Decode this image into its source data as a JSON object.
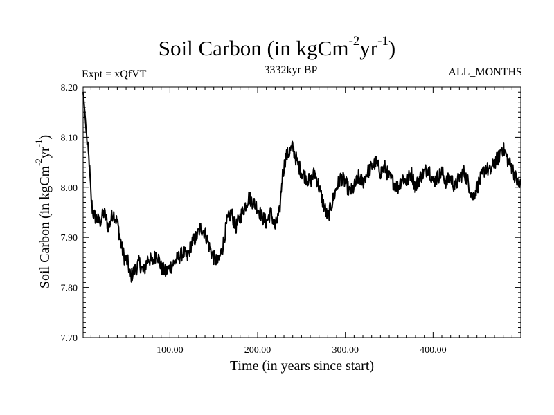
{
  "header": {
    "title_main": "Soil Carbon (in kgCm",
    "title_exp1": "-2",
    "title_mid": "yr",
    "title_exp2": "-1",
    "title_end": ")",
    "experiment": "Expt = xQfVT",
    "period": "3332kyr BP",
    "months": "ALL_MONTHS"
  },
  "axis_text": {
    "xlabel": "Time (in years since start)",
    "ylabel_main": "Soil Carbon (in kgCm",
    "ylabel_exp1": "-2",
    "ylabel_mid": "yr",
    "ylabel_exp2": "-1",
    "ylabel_end": ")"
  },
  "chart_data": {
    "type": "line",
    "title": "Soil Carbon (in kgCm-2yr-1)",
    "subtitle": "3332kyr BP",
    "xlabel": "Time (in years since start)",
    "ylabel": "Soil Carbon (in kgCm-2yr-1)",
    "xlim": [
      1,
      500
    ],
    "ylim": [
      7.7,
      8.2
    ],
    "x_ticks": [
      100,
      200,
      300,
      400
    ],
    "x_tick_labels": [
      "100.00",
      "200.00",
      "300.00",
      "400.00"
    ],
    "y_ticks": [
      7.7,
      7.8,
      7.9,
      8.0,
      8.1,
      8.2
    ],
    "y_tick_labels": [
      "7.70",
      "7.80",
      "7.90",
      "8.00",
      "8.10",
      "8.20"
    ],
    "grid": false,
    "line_color": "#000000",
    "series": [
      {
        "name": "Soil Carbon",
        "x": [
          1,
          3,
          5,
          8,
          10,
          12,
          15,
          20,
          25,
          30,
          35,
          40,
          45,
          48,
          52,
          55,
          58,
          62,
          65,
          70,
          75,
          80,
          85,
          90,
          95,
          100,
          105,
          110,
          115,
          120,
          125,
          130,
          135,
          140,
          145,
          150,
          155,
          160,
          165,
          170,
          175,
          180,
          185,
          190,
          195,
          200,
          205,
          210,
          215,
          220,
          225,
          228,
          232,
          236,
          240,
          245,
          250,
          255,
          260,
          265,
          270,
          273,
          276,
          280,
          285,
          290,
          295,
          300,
          305,
          310,
          315,
          320,
          325,
          330,
          335,
          340,
          345,
          350,
          355,
          360,
          365,
          370,
          375,
          380,
          385,
          390,
          395,
          400,
          405,
          410,
          415,
          420,
          425,
          430,
          435,
          440,
          445,
          450,
          455,
          460,
          465,
          470,
          475,
          478,
          482,
          486,
          490,
          494,
          498,
          500
        ],
        "values": [
          8.19,
          8.15,
          8.1,
          8.05,
          7.98,
          7.95,
          7.94,
          7.93,
          7.95,
          7.92,
          7.95,
          7.93,
          7.88,
          7.86,
          7.85,
          7.82,
          7.83,
          7.84,
          7.85,
          7.83,
          7.86,
          7.85,
          7.87,
          7.84,
          7.83,
          7.84,
          7.85,
          7.86,
          7.87,
          7.86,
          7.89,
          7.9,
          7.92,
          7.91,
          7.88,
          7.86,
          7.85,
          7.88,
          7.93,
          7.95,
          7.92,
          7.94,
          7.96,
          7.98,
          7.97,
          7.96,
          7.94,
          7.93,
          7.95,
          7.92,
          7.95,
          8.02,
          8.06,
          8.07,
          8.08,
          8.05,
          8.03,
          8.02,
          8.01,
          8.03,
          8.0,
          7.98,
          7.96,
          7.94,
          7.97,
          8.0,
          8.02,
          8.01,
          7.99,
          8.0,
          8.02,
          8.01,
          8.03,
          8.04,
          8.05,
          8.03,
          8.04,
          8.02,
          8.01,
          8.0,
          8.02,
          8.01,
          8.03,
          8.0,
          8.02,
          8.03,
          8.04,
          8.01,
          8.02,
          8.03,
          8.01,
          8.02,
          8.0,
          8.02,
          8.03,
          8.01,
          7.98,
          8.0,
          8.02,
          8.04,
          8.03,
          8.05,
          8.06,
          8.08,
          8.07,
          8.05,
          8.04,
          8.02,
          8.0,
          8.01
        ]
      }
    ]
  }
}
